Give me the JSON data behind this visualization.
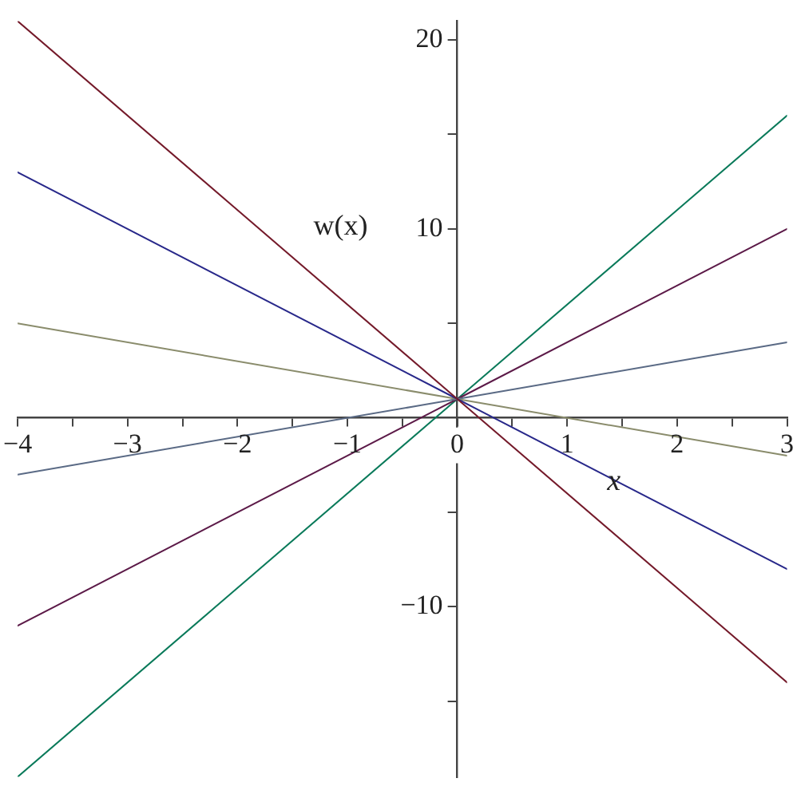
{
  "chart_data": {
    "type": "line",
    "xlabel": "x",
    "ylabel": "w(x)",
    "x": [
      -4,
      0,
      3
    ],
    "series": [
      {
        "color": "#741a2a",
        "values": [
          21,
          1,
          -14
        ]
      },
      {
        "color": "#28288a",
        "values": [
          13,
          1,
          -8
        ]
      },
      {
        "color": "#8a8c6c",
        "values": [
          5,
          1,
          -2
        ]
      },
      {
        "color": "#5a6a85",
        "values": [
          -3,
          1,
          4
        ]
      },
      {
        "color": "#5c1a48",
        "values": [
          -11,
          1,
          10
        ]
      },
      {
        "color": "#0a7a5a",
        "values": [
          -19,
          1,
          16
        ]
      }
    ],
    "xlim": [
      -4,
      3
    ],
    "xticks": [
      {
        "value": -4,
        "label": "−4"
      },
      {
        "value": -3.5,
        "label": null
      },
      {
        "value": -3,
        "label": "−3"
      },
      {
        "value": -2.5,
        "label": null
      },
      {
        "value": -2,
        "label": "−2"
      },
      {
        "value": -1.5,
        "label": null
      },
      {
        "value": -1,
        "label": "−1"
      },
      {
        "value": -0.5,
        "label": null
      },
      0,
      {
        "value": 0.5,
        "label": null
      },
      1,
      {
        "value": 1.5,
        "label": null
      },
      2,
      {
        "value": 2.5,
        "label": null
      },
      3
    ],
    "ylim": [
      -19,
      21
    ],
    "yticks": [
      {
        "value": -15,
        "label": null
      },
      {
        "value": -10,
        "label": "−10"
      },
      {
        "value": -5,
        "label": null
      },
      {
        "value": 5,
        "label": null
      },
      10,
      {
        "value": 15,
        "label": null
      },
      20
    ],
    "grid": false,
    "legend": false,
    "marker": "none",
    "line_style": "solid"
  }
}
